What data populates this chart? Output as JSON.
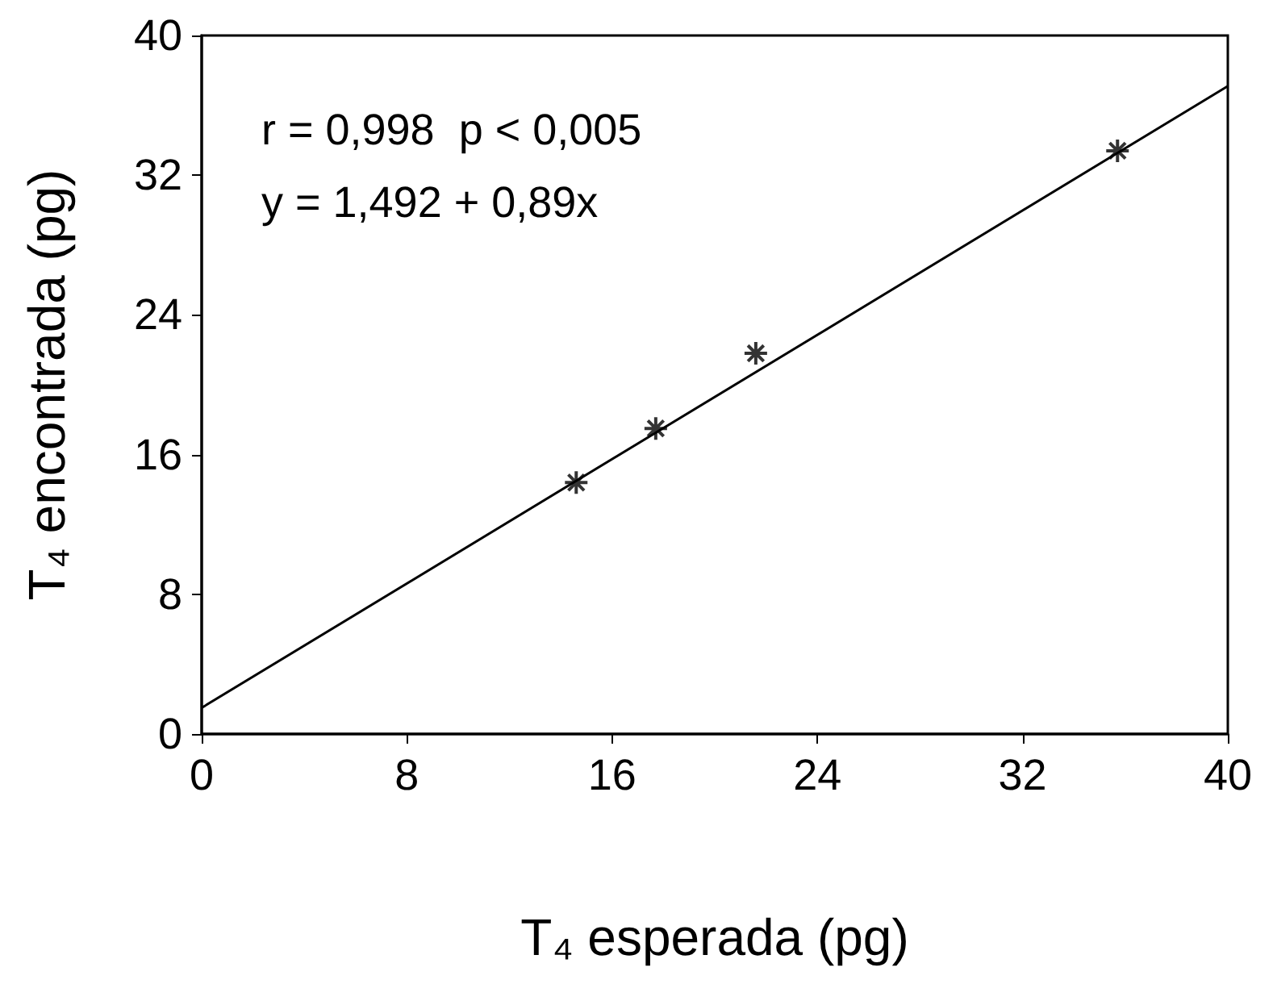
{
  "chart_data": {
    "type": "scatter",
    "xlabel": "T₄ esperada (pg)",
    "ylabel": "T₄ encontrada (pg)",
    "annotations": [
      "r = 0,998  p < 0,005",
      "y = 1,492 + 0,89x"
    ],
    "series": [
      {
        "color": "#000000",
        "marker": "cross",
        "x": [
          14.6,
          17.7,
          21.6,
          35.7
        ],
        "values": [
          14.4,
          17.5,
          21.8,
          33.4
        ]
      },
      {
        "type": "line",
        "color": "#000000",
        "marker": "none",
        "line_style": "solid",
        "x": [
          0,
          40
        ],
        "values": [
          1.5,
          37.1
        ]
      }
    ],
    "xlim": [
      0,
      40
    ],
    "xticks": [
      0,
      8,
      16,
      24,
      32,
      40
    ],
    "ylim": [
      0,
      40
    ],
    "yticks": [
      0,
      8,
      16,
      24,
      32,
      40
    ],
    "grid": false
  }
}
